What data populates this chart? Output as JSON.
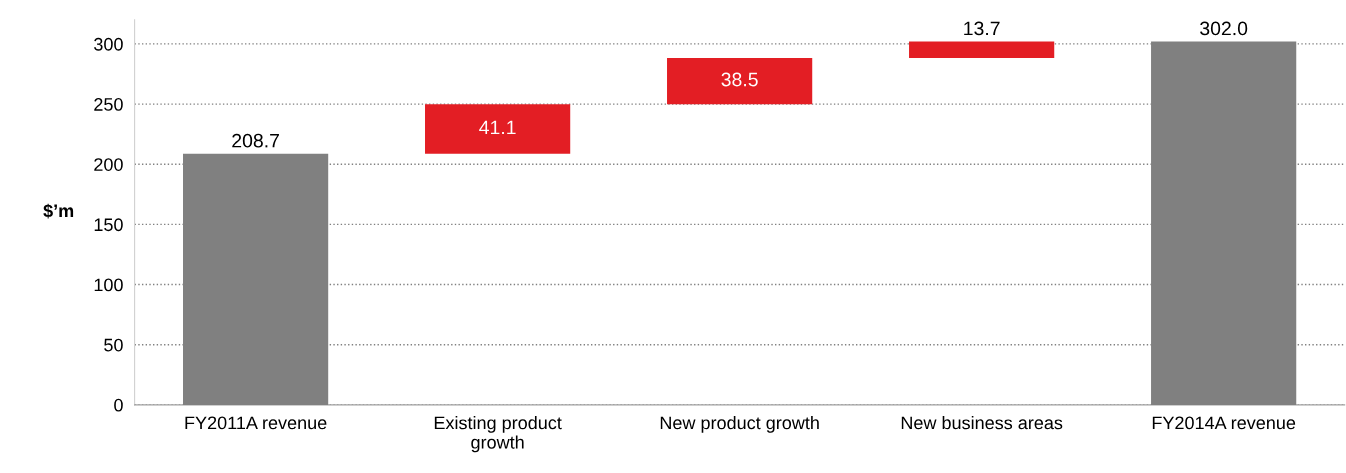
{
  "chart_data": {
    "type": "bar",
    "ylabel": "$’m",
    "categories": [
      "FY2011A revenue",
      "Existing product growth",
      "New product growth",
      "New business areas",
      "FY2014A revenue"
    ],
    "values": [
      208.7,
      41.1,
      38.5,
      13.7,
      302.0
    ],
    "base": [
      0,
      208.7,
      249.8,
      288.3,
      0
    ],
    "colors": [
      "#808080",
      "#e31e24",
      "#e31e24",
      "#e31e24",
      "#808080"
    ],
    "value_labels": [
      "208.7",
      "41.1",
      "38.5",
      "13.7",
      "302.0"
    ],
    "ylim": [
      0,
      320
    ],
    "yticks": [
      0,
      50,
      100,
      150,
      200,
      250,
      300
    ],
    "grid": "y"
  }
}
